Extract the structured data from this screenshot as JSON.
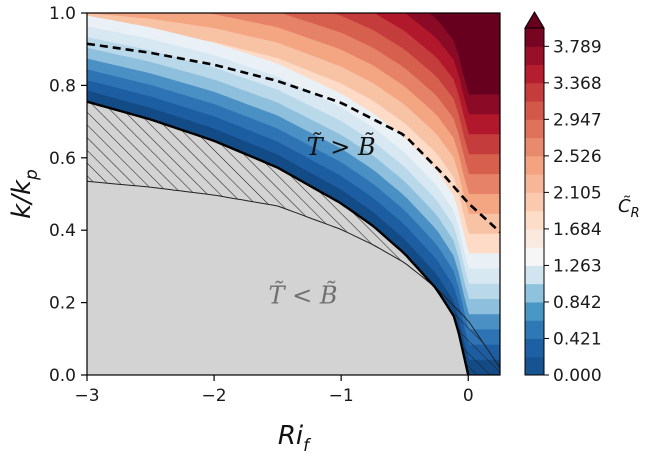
{
  "chart_data": {
    "type": "heatmap",
    "title": "",
    "xlabel": "Ri",
    "xlabel_sub": "f",
    "ylabel": "k/k",
    "ylabel_sub": "p",
    "xlim": [
      -3.0,
      0.25
    ],
    "ylim": [
      0.0,
      1.0
    ],
    "x_ticks": [
      -3,
      -2,
      -1,
      0
    ],
    "x_tick_labels": [
      "−3",
      "−2",
      "−1",
      "0"
    ],
    "y_ticks": [
      0.0,
      0.2,
      0.4,
      0.6,
      0.8,
      1.0
    ],
    "y_tick_labels": [
      "0.0",
      "0.2",
      "0.4",
      "0.6",
      "0.8",
      "1.0"
    ],
    "colorbar": {
      "label": "C̃",
      "label_sub": "R",
      "range": [
        0.0,
        4.0
      ],
      "extend": "max",
      "tick_values": [
        0.0,
        0.421,
        0.842,
        1.263,
        1.684,
        2.105,
        2.526,
        2.947,
        3.368,
        3.789
      ],
      "tick_labels": [
        "0.000",
        "0.421",
        "0.842",
        "1.263",
        "1.684",
        "2.105",
        "2.526",
        "2.947",
        "3.368",
        "3.789"
      ],
      "colors": [
        "#134b87",
        "#2166ac",
        "#4393c3",
        "#92c5de",
        "#d1e5f0",
        "#f7f7f7",
        "#fddbc7",
        "#f4a582",
        "#d6604d",
        "#b2182b",
        "#67001f"
      ]
    },
    "contour_levels_blue": [
      {
        "value": 0.0,
        "color": "#134b87"
      },
      {
        "value": 0.105,
        "color": "#1d5ea2"
      },
      {
        "value": 0.21,
        "color": "#2e74b5"
      },
      {
        "value": 0.316,
        "color": "#4a90c4"
      },
      {
        "value": 0.421,
        "color": "#8ebfdc"
      },
      {
        "value": 0.526,
        "color": "#b9d8ea"
      },
      {
        "value": 0.632,
        "color": "#d7e8f2"
      },
      {
        "value": 0.737,
        "color": "#e9f1f6"
      }
    ],
    "upper_boundary_k": [
      {
        "ri": -3.0,
        "k": 0.755
      },
      {
        "ri": -2.5,
        "k": 0.706
      },
      {
        "ri": -2.0,
        "k": 0.647
      },
      {
        "ri": -1.5,
        "k": 0.573
      },
      {
        "ri": -1.0,
        "k": 0.474
      },
      {
        "ri": -0.75,
        "k": 0.412
      },
      {
        "ri": -0.5,
        "k": 0.335
      },
      {
        "ri": -0.25,
        "k": 0.238
      },
      {
        "ri": -0.1,
        "k": 0.155
      },
      {
        "ri": 0.0,
        "k": 0.0
      }
    ],
    "lower_boundary_k": [
      {
        "ri": -3.0,
        "k": 0.535
      },
      {
        "ri": -2.5,
        "k": 0.519
      },
      {
        "ri": -2.0,
        "k": 0.497
      },
      {
        "ri": -1.5,
        "k": 0.467
      },
      {
        "ri": -1.0,
        "k": 0.402
      },
      {
        "ri": -0.75,
        "k": 0.36
      },
      {
        "ri": -0.5,
        "k": 0.31
      },
      {
        "ri": -0.25,
        "k": 0.24
      },
      {
        "ri": 0.0,
        "k": 0.15
      },
      {
        "ri": 0.25,
        "k": 0.02
      }
    ],
    "dashed_line_k": [
      {
        "ri": -3.0,
        "k": 0.915
      },
      {
        "ri": -2.5,
        "k": 0.89
      },
      {
        "ri": -2.0,
        "k": 0.857
      },
      {
        "ri": -1.5,
        "k": 0.812
      },
      {
        "ri": -1.0,
        "k": 0.752
      },
      {
        "ri": -0.5,
        "k": 0.662
      },
      {
        "ri": -0.2,
        "k": 0.555
      },
      {
        "ri": 0.0,
        "k": 0.475
      },
      {
        "ri": 0.25,
        "k": 0.395
      }
    ],
    "annotations": [
      {
        "id": "above",
        "text": "T̃ > B̃",
        "ri": -1.0,
        "k": 0.63,
        "color": "#111111"
      },
      {
        "id": "below",
        "text": "T̃ < B̃",
        "ri": -1.3,
        "k": 0.22,
        "color": "#6f6f6f"
      }
    ],
    "regions": {
      "no_solution_fill": "#d3d3d3",
      "hatch_color": "#222222"
    },
    "grid": false
  }
}
